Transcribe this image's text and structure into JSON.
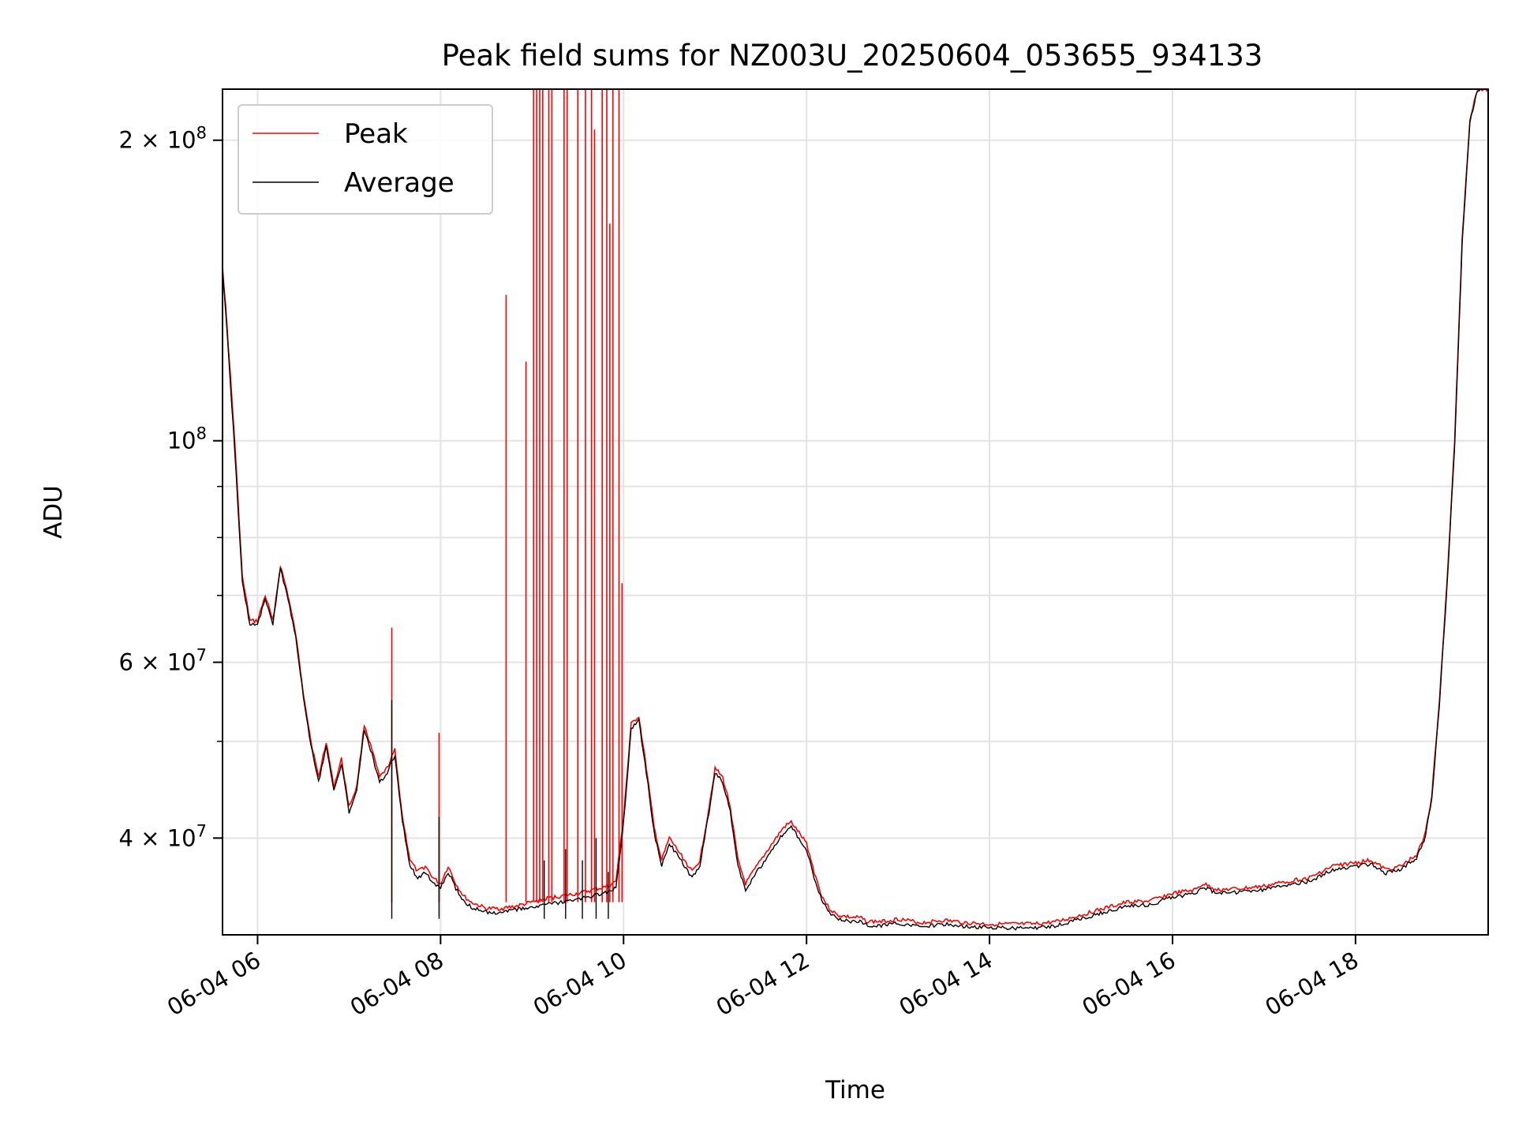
{
  "chart_data": {
    "type": "line",
    "title": "Peak field sums for NZ003U_20250604_053655_934133",
    "xlabel": "Time",
    "ylabel": "ADU",
    "yscale": "log",
    "ylim": [
      32000000,
      225000000
    ],
    "xlim": [
      "2025-06-04 05:37",
      "2025-06-04 19:27"
    ],
    "grid": true,
    "legend": {
      "position": "top-left"
    },
    "x_ticks": [
      {
        "t": "2025-06-04 06:00",
        "label": "06-04 06"
      },
      {
        "t": "2025-06-04 08:00",
        "label": "06-04 08"
      },
      {
        "t": "2025-06-04 10:00",
        "label": "06-04 10"
      },
      {
        "t": "2025-06-04 12:00",
        "label": "06-04 12"
      },
      {
        "t": "2025-06-04 14:00",
        "label": "06-04 14"
      },
      {
        "t": "2025-06-04 16:00",
        "label": "06-04 16"
      },
      {
        "t": "2025-06-04 18:00",
        "label": "06-04 18"
      }
    ],
    "y_ticks": [
      {
        "value": 40000000,
        "label": "4 × 10",
        "exp": "7"
      },
      {
        "value": 60000000,
        "label": "6 × 10",
        "exp": "7"
      },
      {
        "value": 100000000,
        "label": "10",
        "exp": "8"
      },
      {
        "value": 200000000,
        "label": "2 × 10",
        "exp": "8"
      }
    ],
    "y_minor": [
      30000000,
      50000000,
      70000000,
      80000000,
      90000000
    ],
    "series": [
      {
        "name": "Peak",
        "color": "#ff0000",
        "x": [
          "2025-06-04 05:37",
          "2025-06-04 05:40",
          "2025-06-04 05:45",
          "2025-06-04 05:50",
          "2025-06-04 05:55",
          "2025-06-04 06:00",
          "2025-06-04 06:05",
          "2025-06-04 06:10",
          "2025-06-04 06:15",
          "2025-06-04 06:20",
          "2025-06-04 06:25",
          "2025-06-04 06:30",
          "2025-06-04 06:35",
          "2025-06-04 06:40",
          "2025-06-04 06:45",
          "2025-06-04 06:50",
          "2025-06-04 06:55",
          "2025-06-04 07:00",
          "2025-06-04 07:05",
          "2025-06-04 07:10",
          "2025-06-04 07:15",
          "2025-06-04 07:20",
          "2025-06-04 07:25",
          "2025-06-04 07:30",
          "2025-06-04 07:35",
          "2025-06-04 07:40",
          "2025-06-04 07:45",
          "2025-06-04 07:50",
          "2025-06-04 07:55",
          "2025-06-04 08:00",
          "2025-06-04 08:05",
          "2025-06-04 08:10",
          "2025-06-04 08:15",
          "2025-06-04 08:20",
          "2025-06-04 08:30",
          "2025-06-04 08:40",
          "2025-06-04 08:50",
          "2025-06-04 09:00",
          "2025-06-04 09:10",
          "2025-06-04 09:20",
          "2025-06-04 09:30",
          "2025-06-04 09:40",
          "2025-06-04 09:50",
          "2025-06-04 09:55",
          "2025-06-04 10:00",
          "2025-06-04 10:05",
          "2025-06-04 10:10",
          "2025-06-04 10:15",
          "2025-06-04 10:20",
          "2025-06-04 10:25",
          "2025-06-04 10:30",
          "2025-06-04 10:35",
          "2025-06-04 10:40",
          "2025-06-04 10:45",
          "2025-06-04 10:50",
          "2025-06-04 10:55",
          "2025-06-04 11:00",
          "2025-06-04 11:05",
          "2025-06-04 11:10",
          "2025-06-04 11:15",
          "2025-06-04 11:20",
          "2025-06-04 11:25",
          "2025-06-04 11:30",
          "2025-06-04 11:35",
          "2025-06-04 11:40",
          "2025-06-04 11:45",
          "2025-06-04 11:50",
          "2025-06-04 11:55",
          "2025-06-04 12:00",
          "2025-06-04 12:05",
          "2025-06-04 12:10",
          "2025-06-04 12:15",
          "2025-06-04 12:20",
          "2025-06-04 12:25",
          "2025-06-04 12:30",
          "2025-06-04 12:35",
          "2025-06-04 12:40",
          "2025-06-04 12:50",
          "2025-06-04 13:00",
          "2025-06-04 13:15",
          "2025-06-04 13:30",
          "2025-06-04 13:45",
          "2025-06-04 14:00",
          "2025-06-04 14:15",
          "2025-06-04 14:30",
          "2025-06-04 14:45",
          "2025-06-04 15:00",
          "2025-06-04 15:15",
          "2025-06-04 15:30",
          "2025-06-04 15:45",
          "2025-06-04 16:00",
          "2025-06-04 16:15",
          "2025-06-04 16:20",
          "2025-06-04 16:30",
          "2025-06-04 16:45",
          "2025-06-04 17:00",
          "2025-06-04 17:15",
          "2025-06-04 17:30",
          "2025-06-04 17:45",
          "2025-06-04 18:00",
          "2025-06-04 18:10",
          "2025-06-04 18:20",
          "2025-06-04 18:30",
          "2025-06-04 18:40",
          "2025-06-04 18:45",
          "2025-06-04 18:50",
          "2025-06-04 18:55",
          "2025-06-04 19:00",
          "2025-06-04 19:05",
          "2025-06-04 19:10",
          "2025-06-04 19:15",
          "2025-06-04 19:20",
          "2025-06-04 19:27"
        ],
        "values": [
          150000000,
          130000000,
          100000000,
          73000000,
          66000000,
          66000000,
          70000000,
          66000000,
          75000000,
          70000000,
          64000000,
          56000000,
          50000000,
          46000000,
          50000000,
          45000000,
          48000000,
          43000000,
          45000000,
          52000000,
          49000000,
          46000000,
          47000000,
          49000000,
          42000000,
          38000000,
          37000000,
          37500000,
          36500000,
          36000000,
          37500000,
          36000000,
          35000000,
          34500000,
          34000000,
          34000000,
          34200000,
          34500000,
          34800000,
          35000000,
          35200000,
          35500000,
          35800000,
          36200000,
          42000000,
          52000000,
          53000000,
          47000000,
          41000000,
          38000000,
          40000000,
          39000000,
          38000000,
          37000000,
          38000000,
          42000000,
          47000000,
          46000000,
          43000000,
          38000000,
          36000000,
          37000000,
          38000000,
          39000000,
          40000000,
          41000000,
          41500000,
          40500000,
          39500000,
          37000000,
          35000000,
          34000000,
          33500000,
          33400000,
          33300000,
          33300000,
          33000000,
          33000000,
          33200000,
          32900000,
          33100000,
          32900000,
          32800000,
          32800000,
          32800000,
          33000000,
          33500000,
          34000000,
          34500000,
          34600000,
          35200000,
          35500000,
          36000000,
          35500000,
          35600000,
          35800000,
          36200000,
          36500000,
          37500000,
          37800000,
          38000000,
          37200000,
          37500000,
          38500000,
          40000000,
          44000000,
          55000000,
          72000000,
          100000000,
          160000000,
          210000000,
          225000000,
          225000000
        ]
      },
      {
        "name": "Average",
        "color": "#000000",
        "x": [
          "2025-06-04 05:37",
          "2025-06-04 05:40",
          "2025-06-04 05:45",
          "2025-06-04 05:50",
          "2025-06-04 05:55",
          "2025-06-04 06:00",
          "2025-06-04 06:05",
          "2025-06-04 06:10",
          "2025-06-04 06:15",
          "2025-06-04 06:20",
          "2025-06-04 06:25",
          "2025-06-04 06:30",
          "2025-06-04 06:35",
          "2025-06-04 06:40",
          "2025-06-04 06:45",
          "2025-06-04 06:50",
          "2025-06-04 06:55",
          "2025-06-04 07:00",
          "2025-06-04 07:05",
          "2025-06-04 07:10",
          "2025-06-04 07:15",
          "2025-06-04 07:20",
          "2025-06-04 07:25",
          "2025-06-04 07:30",
          "2025-06-04 07:35",
          "2025-06-04 07:40",
          "2025-06-04 07:45",
          "2025-06-04 07:50",
          "2025-06-04 07:55",
          "2025-06-04 08:00",
          "2025-06-04 08:05",
          "2025-06-04 08:10",
          "2025-06-04 08:15",
          "2025-06-04 08:20",
          "2025-06-04 08:30",
          "2025-06-04 08:40",
          "2025-06-04 08:50",
          "2025-06-04 09:00",
          "2025-06-04 09:10",
          "2025-06-04 09:20",
          "2025-06-04 09:30",
          "2025-06-04 09:40",
          "2025-06-04 09:50",
          "2025-06-04 09:55",
          "2025-06-04 10:00",
          "2025-06-04 10:05",
          "2025-06-04 10:10",
          "2025-06-04 10:15",
          "2025-06-04 10:20",
          "2025-06-04 10:25",
          "2025-06-04 10:30",
          "2025-06-04 10:35",
          "2025-06-04 10:40",
          "2025-06-04 10:45",
          "2025-06-04 10:50",
          "2025-06-04 10:55",
          "2025-06-04 11:00",
          "2025-06-04 11:05",
          "2025-06-04 11:10",
          "2025-06-04 11:15",
          "2025-06-04 11:20",
          "2025-06-04 11:25",
          "2025-06-04 11:30",
          "2025-06-04 11:35",
          "2025-06-04 11:40",
          "2025-06-04 11:45",
          "2025-06-04 11:50",
          "2025-06-04 11:55",
          "2025-06-04 12:00",
          "2025-06-04 12:05",
          "2025-06-04 12:10",
          "2025-06-04 12:15",
          "2025-06-04 12:20",
          "2025-06-04 12:25",
          "2025-06-04 12:30",
          "2025-06-04 12:35",
          "2025-06-04 12:40",
          "2025-06-04 12:50",
          "2025-06-04 13:00",
          "2025-06-04 13:15",
          "2025-06-04 13:30",
          "2025-06-04 13:45",
          "2025-06-04 14:00",
          "2025-06-04 14:15",
          "2025-06-04 14:30",
          "2025-06-04 14:45",
          "2025-06-04 15:00",
          "2025-06-04 15:15",
          "2025-06-04 15:30",
          "2025-06-04 15:45",
          "2025-06-04 16:00",
          "2025-06-04 16:15",
          "2025-06-04 16:20",
          "2025-06-04 16:30",
          "2025-06-04 16:45",
          "2025-06-04 17:00",
          "2025-06-04 17:15",
          "2025-06-04 17:30",
          "2025-06-04 17:45",
          "2025-06-04 18:00",
          "2025-06-04 18:10",
          "2025-06-04 18:20",
          "2025-06-04 18:30",
          "2025-06-04 18:40",
          "2025-06-04 18:45",
          "2025-06-04 18:50",
          "2025-06-04 18:55",
          "2025-06-04 19:00",
          "2025-06-04 19:05",
          "2025-06-04 19:10",
          "2025-06-04 19:15",
          "2025-06-04 19:20",
          "2025-06-04 19:27"
        ],
        "values": [
          148000000,
          128000000,
          98000000,
          72000000,
          65500000,
          65500000,
          69500000,
          65500000,
          74500000,
          69500000,
          63500000,
          55500000,
          49500000,
          45500000,
          49500000,
          44500000,
          47500000,
          42500000,
          44500000,
          51500000,
          48500000,
          45500000,
          46500000,
          48500000,
          41500000,
          37500000,
          36500000,
          37000000,
          36000000,
          35600000,
          37000000,
          35600000,
          34600000,
          34100000,
          33700000,
          33700000,
          33900000,
          34100000,
          34300000,
          34500000,
          34700000,
          35000000,
          35300000,
          35700000,
          41500000,
          51500000,
          52500000,
          46500000,
          40500000,
          37500000,
          39500000,
          38500000,
          37500000,
          36500000,
          37500000,
          41500000,
          46500000,
          45500000,
          42500000,
          37500000,
          35500000,
          36500000,
          37500000,
          38500000,
          39500000,
          40500000,
          41000000,
          40000000,
          39000000,
          36500000,
          34600000,
          33700000,
          33200000,
          33100000,
          33000000,
          33000000,
          32700000,
          32700000,
          32900000,
          32600000,
          32800000,
          32600000,
          32500000,
          32500000,
          32500000,
          32700000,
          33200000,
          33700000,
          34200000,
          34300000,
          34900000,
          35200000,
          35700000,
          35200000,
          35300000,
          35500000,
          35900000,
          36200000,
          37200000,
          37500000,
          37700000,
          36900000,
          37200000,
          38200000,
          39700000,
          43700000,
          54500000,
          71500000,
          99000000,
          158000000,
          208000000,
          225000000,
          225000000
        ]
      }
    ],
    "peak_spikes": [
      {
        "t": "2025-06-04 07:28",
        "value": 65000000
      },
      {
        "t": "2025-06-04 07:59",
        "value": 51000000
      },
      {
        "t": "2025-06-04 08:43",
        "value": 140000000
      },
      {
        "t": "2025-06-04 08:56",
        "value": 120000000
      },
      {
        "t": "2025-06-04 09:01",
        "value": 225000000
      },
      {
        "t": "2025-06-04 09:03",
        "value": 225000000
      },
      {
        "t": "2025-06-04 09:05",
        "value": 225000000
      },
      {
        "t": "2025-06-04 09:07",
        "value": 225000000
      },
      {
        "t": "2025-06-04 09:11",
        "value": 225000000
      },
      {
        "t": "2025-06-04 09:13",
        "value": 225000000
      },
      {
        "t": "2025-06-04 09:21",
        "value": 225000000
      },
      {
        "t": "2025-06-04 09:23",
        "value": 225000000
      },
      {
        "t": "2025-06-04 09:30",
        "value": 225000000
      },
      {
        "t": "2025-06-04 09:35",
        "value": 225000000
      },
      {
        "t": "2025-06-04 09:39",
        "value": 225000000
      },
      {
        "t": "2025-06-04 09:41",
        "value": 205000000
      },
      {
        "t": "2025-06-04 09:46",
        "value": 225000000
      },
      {
        "t": "2025-06-04 09:49",
        "value": 225000000
      },
      {
        "t": "2025-06-04 09:51",
        "value": 165000000
      },
      {
        "t": "2025-06-04 09:53",
        "value": 225000000
      },
      {
        "t": "2025-06-04 09:57",
        "value": 225000000
      },
      {
        "t": "2025-06-04 09:59",
        "value": 72000000
      }
    ],
    "average_spikes": [
      {
        "t": "2025-06-04 07:28",
        "value": 55000000
      },
      {
        "t": "2025-06-04 07:59",
        "value": 42000000
      },
      {
        "t": "2025-06-04 09:08",
        "value": 38000000
      },
      {
        "t": "2025-06-04 09:22",
        "value": 39000000
      },
      {
        "t": "2025-06-04 09:33",
        "value": 38000000
      },
      {
        "t": "2025-06-04 09:42",
        "value": 40000000
      },
      {
        "t": "2025-06-04 09:50",
        "value": 37000000
      }
    ]
  }
}
